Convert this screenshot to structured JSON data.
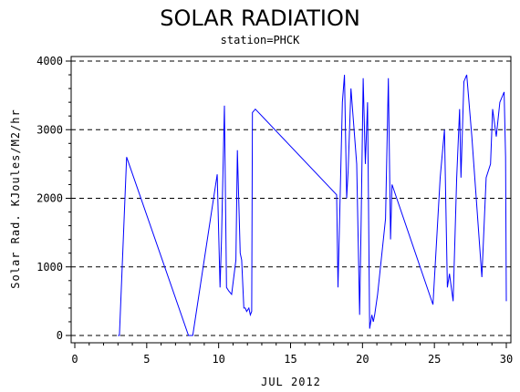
{
  "chart_data": {
    "type": "line",
    "title": "SOLAR RADIATION",
    "subtitle": "station=PHCK",
    "xlabel": "JUL 2012",
    "ylabel": "Solar Rad. KJoules/M2/hr",
    "xlim": [
      0,
      30
    ],
    "ylim": [
      0,
      4000
    ],
    "x_ticks": [
      "0",
      "5",
      "10",
      "15",
      "20",
      "25",
      "30"
    ],
    "y_ticks": [
      "0",
      "1000",
      "2000",
      "3000",
      "4000"
    ],
    "grid": "horizontal dashed",
    "line_color": "#0000ff",
    "series": [
      {
        "x": [
          3.0,
          3.1,
          3.6,
          7.9,
          8.2,
          9.9,
          10.1,
          10.2,
          10.4,
          10.55,
          10.7,
          10.9,
          11.2,
          11.3,
          11.5,
          11.6,
          11.75,
          11.85,
          11.95,
          12.1,
          12.2,
          12.3,
          12.35,
          12.55,
          18.2,
          18.3,
          18.6,
          18.75,
          18.9,
          19.0,
          19.2,
          19.6,
          19.8,
          19.9,
          20.05,
          20.2,
          20.35,
          20.5,
          20.65,
          20.75,
          20.85,
          21.05,
          21.6,
          21.8,
          21.95,
          22.05,
          24.9,
          25.4,
          25.7,
          25.9,
          26.05,
          26.3,
          26.55,
          26.75,
          26.85,
          27.05,
          27.25,
          27.6,
          28.3,
          28.6,
          28.9,
          29.05,
          29.3,
          29.55,
          29.85,
          29.95,
          30.0
        ],
        "values": [
          0,
          0,
          2600,
          0,
          0,
          2350,
          700,
          1400,
          3350,
          700,
          650,
          600,
          1100,
          2700,
          1200,
          1100,
          400,
          400,
          350,
          400,
          300,
          350,
          3250,
          3300,
          2050,
          700,
          3400,
          3800,
          2000,
          2400,
          3600,
          2500,
          300,
          1600,
          3750,
          2500,
          3400,
          100,
          300,
          200,
          300,
          600,
          1700,
          3750,
          1400,
          2200,
          450,
          2300,
          3000,
          700,
          900,
          500,
          2300,
          3300,
          2300,
          3700,
          3800,
          2900,
          850,
          2300,
          2500,
          3300,
          2900,
          3400,
          3550,
          2600,
          500
        ]
      }
    ]
  }
}
